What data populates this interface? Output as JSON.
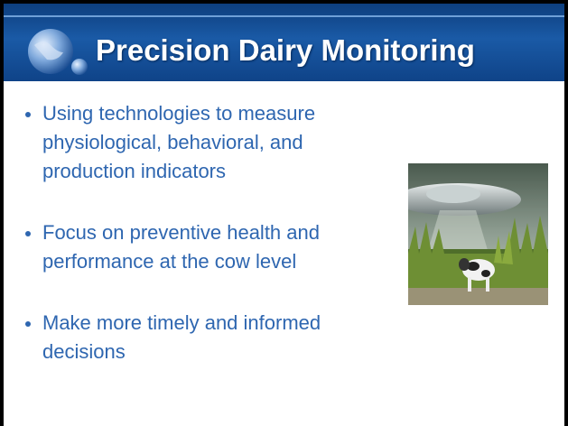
{
  "header": {
    "title": "Precision Dairy Monitoring"
  },
  "bullets": [
    [
      "Using technologies to measure",
      "physiological, behavioral, and",
      "production indicators"
    ],
    [
      "Focus on preventive health and",
      "performance at the cow level"
    ],
    [
      "Make more timely and informed",
      "decisions"
    ]
  ]
}
